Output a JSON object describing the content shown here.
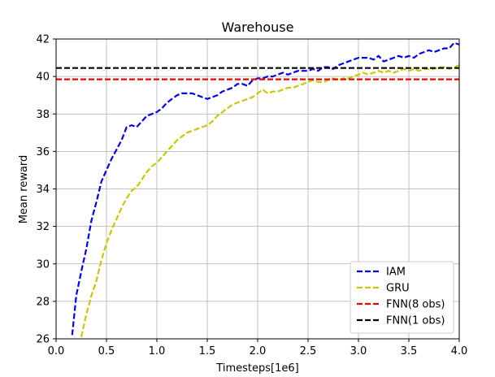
{
  "chart_data": {
    "type": "line",
    "title": "Warehouse",
    "xlabel": "Timesteps[1e6]",
    "ylabel": "Mean reward",
    "xlim": [
      0.0,
      4.0
    ],
    "ylim": [
      26,
      42
    ],
    "x_ticks": [
      0.0,
      0.5,
      1.0,
      1.5,
      2.0,
      2.5,
      3.0,
      3.5,
      4.0
    ],
    "x_tick_labels": [
      "0.0",
      "0.5",
      "1.0",
      "1.5",
      "2.0",
      "2.5",
      "3.0",
      "3.5",
      "4.0"
    ],
    "y_ticks": [
      26,
      28,
      30,
      32,
      34,
      36,
      38,
      40,
      42
    ],
    "y_tick_labels": [
      "26",
      "28",
      "30",
      "32",
      "34",
      "36",
      "38",
      "40",
      "42"
    ],
    "grid": true,
    "legend_position": "bottom-right",
    "series": [
      {
        "name": "IAM",
        "color": "#0000ee",
        "style": "dashed",
        "x": [
          0.16,
          0.2,
          0.25,
          0.3,
          0.35,
          0.4,
          0.45,
          0.5,
          0.55,
          0.6,
          0.65,
          0.7,
          0.75,
          0.8,
          0.85,
          0.9,
          0.95,
          1.0,
          1.05,
          1.1,
          1.15,
          1.2,
          1.25,
          1.3,
          1.35,
          1.4,
          1.45,
          1.5,
          1.55,
          1.6,
          1.65,
          1.7,
          1.75,
          1.8,
          1.85,
          1.9,
          1.95,
          2.0,
          2.05,
          2.1,
          2.15,
          2.2,
          2.25,
          2.3,
          2.35,
          2.4,
          2.45,
          2.5,
          2.55,
          2.6,
          2.65,
          2.7,
          2.75,
          2.8,
          2.85,
          2.9,
          2.95,
          3.0,
          3.05,
          3.1,
          3.15,
          3.2,
          3.25,
          3.3,
          3.35,
          3.4,
          3.45,
          3.5,
          3.55,
          3.6,
          3.65,
          3.7,
          3.75,
          3.8,
          3.85,
          3.9,
          3.95,
          4.0
        ],
        "y": [
          26.2,
          28.3,
          29.6,
          30.8,
          32.3,
          33.3,
          34.4,
          35.0,
          35.6,
          36.1,
          36.6,
          37.3,
          37.4,
          37.3,
          37.6,
          37.9,
          38.0,
          38.1,
          38.3,
          38.6,
          38.8,
          39.0,
          39.1,
          39.1,
          39.1,
          39.0,
          38.9,
          38.8,
          38.9,
          39.0,
          39.2,
          39.3,
          39.4,
          39.6,
          39.6,
          39.5,
          39.8,
          39.9,
          39.9,
          40.0,
          40.0,
          40.1,
          40.2,
          40.1,
          40.2,
          40.3,
          40.3,
          40.3,
          40.4,
          40.3,
          40.5,
          40.5,
          40.4,
          40.6,
          40.7,
          40.8,
          40.9,
          41.0,
          41.0,
          41.0,
          40.9,
          41.1,
          40.8,
          40.9,
          41.0,
          41.1,
          41.0,
          41.1,
          41.0,
          41.2,
          41.3,
          41.4,
          41.3,
          41.4,
          41.5,
          41.5,
          41.8,
          41.7
        ]
      },
      {
        "name": "GRU",
        "color": "#c8c800",
        "style": "dashed",
        "x": [
          0.25,
          0.3,
          0.35,
          0.4,
          0.45,
          0.5,
          0.55,
          0.6,
          0.65,
          0.7,
          0.75,
          0.8,
          0.85,
          0.9,
          0.95,
          1.0,
          1.05,
          1.1,
          1.15,
          1.2,
          1.25,
          1.3,
          1.35,
          1.4,
          1.45,
          1.5,
          1.55,
          1.6,
          1.65,
          1.7,
          1.75,
          1.8,
          1.85,
          1.9,
          1.95,
          2.0,
          2.05,
          2.1,
          2.15,
          2.2,
          2.25,
          2.3,
          2.35,
          2.4,
          2.45,
          2.5,
          2.55,
          2.6,
          2.65,
          2.7,
          2.75,
          2.8,
          2.85,
          2.9,
          2.95,
          3.0,
          3.05,
          3.1,
          3.15,
          3.2,
          3.25,
          3.3,
          3.35,
          3.4,
          3.45,
          3.5,
          3.55,
          3.6,
          3.65,
          3.7,
          3.75,
          3.8,
          3.85,
          3.9,
          3.95,
          4.0
        ],
        "y": [
          26.1,
          27.3,
          28.3,
          29.1,
          30.2,
          31.1,
          31.8,
          32.4,
          33.0,
          33.5,
          33.9,
          34.1,
          34.5,
          34.9,
          35.2,
          35.4,
          35.7,
          36.0,
          36.3,
          36.6,
          36.8,
          37.0,
          37.1,
          37.2,
          37.3,
          37.4,
          37.6,
          37.9,
          38.1,
          38.3,
          38.5,
          38.6,
          38.7,
          38.8,
          38.9,
          39.1,
          39.3,
          39.1,
          39.2,
          39.2,
          39.3,
          39.4,
          39.4,
          39.5,
          39.6,
          39.7,
          39.8,
          39.7,
          39.7,
          39.8,
          39.9,
          39.8,
          39.9,
          39.9,
          40.0,
          40.1,
          40.2,
          40.1,
          40.2,
          40.3,
          40.2,
          40.3,
          40.2,
          40.3,
          40.4,
          40.3,
          40.4,
          40.3,
          40.4,
          40.4,
          40.4,
          40.5,
          40.5,
          40.4,
          40.5,
          40.6
        ]
      },
      {
        "name": "FNN(8 obs)",
        "color": "#ee0000",
        "style": "dashed",
        "x": [
          0.0,
          4.0
        ],
        "y": [
          39.85,
          39.85
        ]
      },
      {
        "name": "FNN(1 obs)",
        "color": "#000000",
        "style": "dashed",
        "x": [
          0.0,
          4.0
        ],
        "y": [
          40.45,
          40.45
        ]
      }
    ]
  }
}
